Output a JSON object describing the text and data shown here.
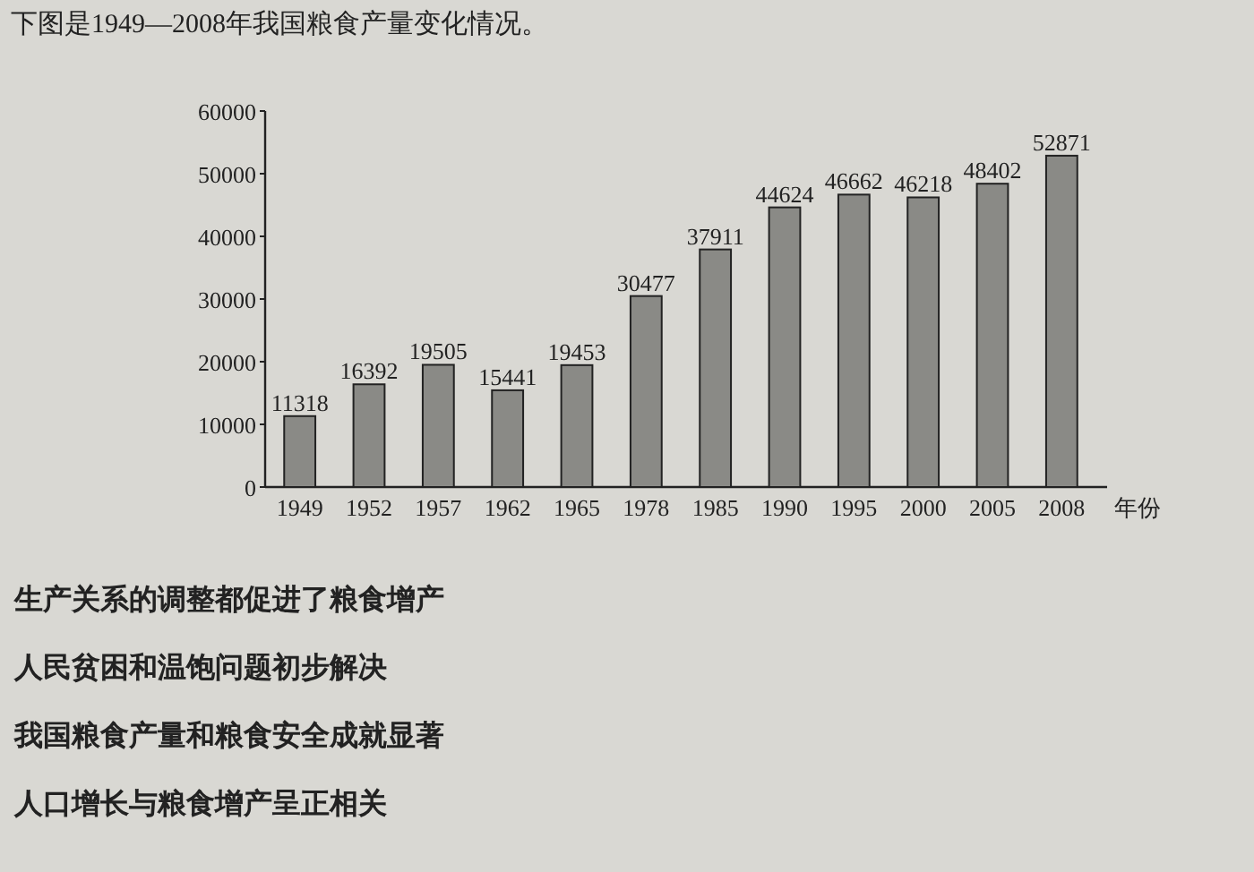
{
  "chart_data": {
    "type": "bar",
    "title": "下图是1949—2008年我国粮食产量变化情况。",
    "xlabel": "年份",
    "categories": [
      "1949",
      "1952",
      "1957",
      "1962",
      "1965",
      "1978",
      "1985",
      "1990",
      "1995",
      "2000",
      "2005",
      "2008"
    ],
    "values": [
      11318,
      16392,
      19505,
      15441,
      19453,
      30477,
      37911,
      44624,
      46662,
      46218,
      48402,
      52871
    ],
    "color": "#8a8a86",
    "data_labels": true,
    "ylim": [
      0,
      60000
    ],
    "yticks": [
      0,
      10000,
      20000,
      30000,
      40000,
      50000,
      60000
    ],
    "annotations": [
      "生产关系的调整都促进了粮食增产",
      "人民贫困和温饱问题初步解决",
      "我国粮食产量和粮食安全成就显著",
      "人口增长与粮食增产呈正相关"
    ]
  }
}
